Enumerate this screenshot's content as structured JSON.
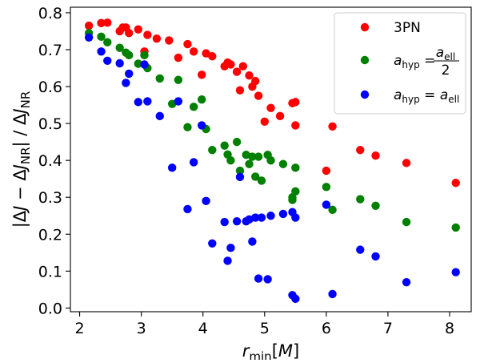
{
  "chart_data": {
    "type": "scatter",
    "xlabel": "r_min[M]",
    "ylabel": "|ΔJ − ΔJ_NR| / ΔJ_NR",
    "xlim": [
      1.85,
      8.35
    ],
    "ylim": [
      -0.01,
      0.815
    ],
    "xticks": [
      2,
      3,
      4,
      5,
      6,
      7,
      8
    ],
    "yticks": [
      0.0,
      0.1,
      0.2,
      0.3,
      0.4,
      0.5,
      0.6,
      0.7,
      0.8
    ],
    "xtick_labels": [
      "2",
      "3",
      "4",
      "5",
      "6",
      "7",
      "8"
    ],
    "ytick_labels": [
      "0.0",
      "0.1",
      "0.2",
      "0.3",
      "0.4",
      "0.5",
      "0.6",
      "0.7",
      "0.8"
    ],
    "grid": false,
    "legend_position": "top-right",
    "series": [
      {
        "name": "3PN",
        "color": "#ff0000",
        "x": [
          2.15,
          2.35,
          2.45,
          2.65,
          2.7,
          2.75,
          2.8,
          2.95,
          3.05,
          3.1,
          3.25,
          3.45,
          3.6,
          3.75,
          3.85,
          3.98,
          4.05,
          4.15,
          4.35,
          4.4,
          4.45,
          4.55,
          4.6,
          4.65,
          4.75,
          4.8,
          4.85,
          4.9,
          5.0,
          5.1,
          5.25,
          5.45,
          5.5,
          5.5,
          6.0,
          6.1,
          6.55,
          6.8,
          7.3,
          8.1
        ],
        "y": [
          0.765,
          0.772,
          0.773,
          0.75,
          0.76,
          0.76,
          0.745,
          0.755,
          0.695,
          0.74,
          0.73,
          0.725,
          0.678,
          0.715,
          0.695,
          0.632,
          0.69,
          0.682,
          0.655,
          0.665,
          0.66,
          0.64,
          0.59,
          0.655,
          0.63,
          0.6,
          0.615,
          0.575,
          0.505,
          0.542,
          0.52,
          0.555,
          0.558,
          0.495,
          0.372,
          0.492,
          0.428,
          0.413,
          0.393,
          0.339
        ]
      },
      {
        "name": "a_hyp = a_ell / 2",
        "color": "#008000",
        "x": [
          2.15,
          2.35,
          2.45,
          2.65,
          2.75,
          2.8,
          2.95,
          3.05,
          3.1,
          3.3,
          3.5,
          3.6,
          3.75,
          3.85,
          3.98,
          4.05,
          4.15,
          4.35,
          4.4,
          4.45,
          4.55,
          4.6,
          4.7,
          4.75,
          4.8,
          4.85,
          4.9,
          4.95,
          5.05,
          5.1,
          5.3,
          5.45,
          5.45,
          5.5,
          5.5,
          6.0,
          6.1,
          6.55,
          6.8,
          7.3,
          8.1
        ],
        "y": [
          0.745,
          0.735,
          0.72,
          0.705,
          0.692,
          0.685,
          0.662,
          0.685,
          0.65,
          0.622,
          0.553,
          0.618,
          0.49,
          0.545,
          0.565,
          0.485,
          0.428,
          0.44,
          0.416,
          0.4,
          0.45,
          0.372,
          0.415,
          0.39,
          0.41,
          0.356,
          0.41,
          0.345,
          0.415,
          0.4,
          0.39,
          0.293,
          0.3,
          0.316,
          0.38,
          0.328,
          0.266,
          0.295,
          0.277,
          0.233,
          0.218
        ]
      },
      {
        "name": "a_hyp = a_ell",
        "color": "#0000ff",
        "x": [
          2.15,
          2.35,
          2.45,
          2.65,
          2.75,
          2.8,
          2.95,
          3.05,
          3.1,
          3.3,
          3.5,
          3.6,
          3.75,
          3.85,
          3.98,
          4.05,
          4.15,
          4.35,
          4.4,
          4.45,
          4.55,
          4.6,
          4.7,
          4.75,
          4.8,
          4.85,
          4.9,
          4.95,
          5.05,
          5.1,
          5.3,
          5.45,
          5.45,
          5.5,
          5.5,
          6.0,
          6.1,
          6.55,
          6.8,
          7.3,
          8.1
        ],
        "y": [
          0.733,
          0.695,
          0.67,
          0.663,
          0.61,
          0.635,
          0.558,
          0.66,
          0.56,
          0.52,
          0.38,
          0.56,
          0.268,
          0.395,
          0.495,
          0.29,
          0.175,
          0.233,
          0.128,
          0.163,
          0.235,
          0.355,
          0.235,
          0.24,
          0.18,
          0.245,
          0.08,
          0.245,
          0.078,
          0.25,
          0.255,
          0.26,
          0.035,
          0.245,
          0.025,
          0.28,
          0.038,
          0.158,
          0.14,
          0.07,
          0.097
        ]
      }
    ]
  }
}
